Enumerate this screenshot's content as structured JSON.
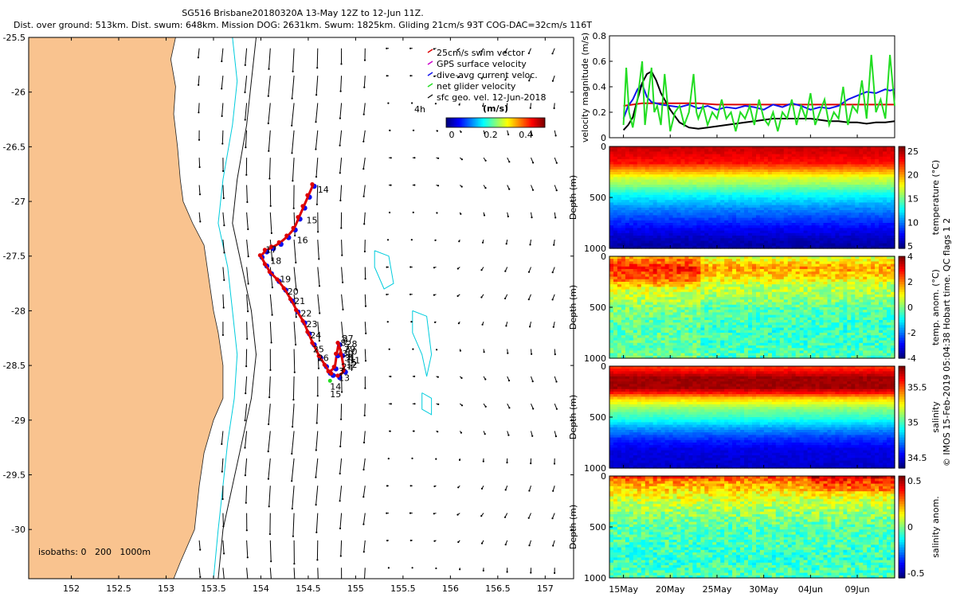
{
  "header": {
    "title": "SG516 Brisbane20180320A 13-May 12Z to 12-Jun 11Z.",
    "stats": "Dist. over ground: 513km. Dist. swum: 648km. Mission DOG: 2631km. Swum: 1825km. Gliding 21cm/s 93T COG-DAC=32cm/s 116T"
  },
  "colors": {
    "land": "#f9c38f",
    "isobath_200": "#00ccdd",
    "track_red": "#dd0000",
    "track_blue": "#1010ee",
    "net_green": "#22dd22"
  },
  "map": {
    "legend": [
      "25cm/s swim vector",
      "GPS surface velocity",
      "dive-avg current veloc.",
      "net glider velocity",
      "sfc geo. vel. 12-Jun-2018"
    ],
    "ref_arrow_label": "4h",
    "colorbar_units": "(m/s)",
    "colorbar_ticks": [
      "0",
      "0.2",
      "0.4"
    ],
    "isobaths_label": "isobaths: 0   200   1000m",
    "x_ticks": [
      "152",
      "152.5",
      "153",
      "153.5",
      "154",
      "154.5",
      "155",
      "155.5",
      "156",
      "156.5",
      "157"
    ],
    "y_ticks": [
      "-25.5",
      "-26",
      "-26.5",
      "-27",
      "-27.5",
      "-28",
      "-28.5",
      "-29",
      "-29.5",
      "-30"
    ],
    "day_labels": [
      "14",
      "15",
      "16",
      "17",
      "18",
      "19",
      "20",
      "21",
      "22",
      "23",
      "24",
      "25",
      "26",
      "27",
      "28",
      "29",
      "30",
      "31",
      "1",
      "2",
      "3",
      "4",
      "5",
      "6",
      "7",
      "8",
      "9",
      "10",
      "11",
      "12",
      "13",
      "14",
      "15"
    ]
  },
  "chart_data": [
    {
      "type": "line",
      "ylabel": "velocity magnitude (m/s)",
      "ylim": [
        0,
        0.8
      ],
      "yticks": [
        "0",
        "0.2",
        "0.4",
        "0.6",
        "0.8"
      ],
      "x_day_range": [
        0,
        29
      ],
      "series": [
        {
          "name": "swim",
          "color": "red",
          "points": [
            [
              0,
              0.25
            ],
            [
              1,
              0.26
            ],
            [
              2,
              0.27
            ],
            [
              3,
              0.27
            ],
            [
              4,
              0.27
            ],
            [
              5,
              0.27
            ],
            [
              8,
              0.27
            ],
            [
              10,
              0.26
            ],
            [
              14,
              0.26
            ],
            [
              18,
              0.26
            ],
            [
              22,
              0.26
            ],
            [
              26,
              0.26
            ],
            [
              29,
              0.26
            ]
          ]
        },
        {
          "name": "depth-average current",
          "color": "blue",
          "points": [
            [
              0,
              0.15
            ],
            [
              0.5,
              0.25
            ],
            [
              1,
              0.3
            ],
            [
              1.5,
              0.38
            ],
            [
              2,
              0.42
            ],
            [
              2.5,
              0.32
            ],
            [
              3,
              0.28
            ],
            [
              4,
              0.26
            ],
            [
              5,
              0.25
            ],
            [
              6,
              0.24
            ],
            [
              7,
              0.26
            ],
            [
              8,
              0.23
            ],
            [
              9,
              0.25
            ],
            [
              10,
              0.22
            ],
            [
              11,
              0.24
            ],
            [
              12,
              0.23
            ],
            [
              13,
              0.25
            ],
            [
              14,
              0.24
            ],
            [
              15,
              0.22
            ],
            [
              16,
              0.26
            ],
            [
              17,
              0.24
            ],
            [
              18,
              0.27
            ],
            [
              19,
              0.25
            ],
            [
              20,
              0.22
            ],
            [
              21,
              0.24
            ],
            [
              22,
              0.23
            ],
            [
              23,
              0.25
            ],
            [
              24,
              0.3
            ],
            [
              25,
              0.33
            ],
            [
              26,
              0.36
            ],
            [
              27,
              0.35
            ],
            [
              28,
              0.38
            ],
            [
              28.5,
              0.37
            ],
            [
              29,
              0.38
            ]
          ]
        },
        {
          "name": "surface geostrophic",
          "color": "black",
          "points": [
            [
              0,
              0.06
            ],
            [
              0.5,
              0.1
            ],
            [
              1,
              0.16
            ],
            [
              1.5,
              0.3
            ],
            [
              2,
              0.43
            ],
            [
              2.5,
              0.5
            ],
            [
              3,
              0.52
            ],
            [
              3.5,
              0.45
            ],
            [
              4,
              0.35
            ],
            [
              5,
              0.22
            ],
            [
              6,
              0.12
            ],
            [
              7,
              0.08
            ],
            [
              8,
              0.07
            ],
            [
              9,
              0.08
            ],
            [
              10,
              0.09
            ],
            [
              11,
              0.1
            ],
            [
              12,
              0.11
            ],
            [
              13,
              0.12
            ],
            [
              14,
              0.13
            ],
            [
              15,
              0.14
            ],
            [
              16,
              0.15
            ],
            [
              17,
              0.15
            ],
            [
              18,
              0.15
            ],
            [
              19,
              0.15
            ],
            [
              20,
              0.15
            ],
            [
              21,
              0.14
            ],
            [
              22,
              0.13
            ],
            [
              23,
              0.13
            ],
            [
              24,
              0.12
            ],
            [
              25,
              0.12
            ],
            [
              26,
              0.11
            ],
            [
              27,
              0.12
            ],
            [
              28,
              0.12
            ],
            [
              29,
              0.13
            ]
          ]
        },
        {
          "name": "net glider velocity",
          "color": "green",
          "points": [
            [
              0,
              0.1
            ],
            [
              0.3,
              0.55
            ],
            [
              0.6,
              0.2
            ],
            [
              1,
              0.08
            ],
            [
              1.5,
              0.3
            ],
            [
              2,
              0.6
            ],
            [
              2.3,
              0.1
            ],
            [
              2.6,
              0.3
            ],
            [
              3,
              0.55
            ],
            [
              3.3,
              0.2
            ],
            [
              3.6,
              0.25
            ],
            [
              4,
              0.1
            ],
            [
              4.4,
              0.5
            ],
            [
              4.8,
              0.2
            ],
            [
              5,
              0.05
            ],
            [
              5.5,
              0.2
            ],
            [
              6,
              0.25
            ],
            [
              6.5,
              0.1
            ],
            [
              7,
              0.2
            ],
            [
              7.5,
              0.5
            ],
            [
              7.8,
              0.2
            ],
            [
              8,
              0.15
            ],
            [
              8.5,
              0.25
            ],
            [
              9,
              0.1
            ],
            [
              9.5,
              0.2
            ],
            [
              10,
              0.15
            ],
            [
              10.5,
              0.3
            ],
            [
              11,
              0.15
            ],
            [
              11.5,
              0.2
            ],
            [
              12,
              0.05
            ],
            [
              12.5,
              0.2
            ],
            [
              13,
              0.15
            ],
            [
              13.5,
              0.25
            ],
            [
              14,
              0.1
            ],
            [
              14.5,
              0.3
            ],
            [
              15,
              0.15
            ],
            [
              15.5,
              0.1
            ],
            [
              16,
              0.2
            ],
            [
              16.5,
              0.05
            ],
            [
              17,
              0.2
            ],
            [
              17.5,
              0.15
            ],
            [
              18,
              0.3
            ],
            [
              18.5,
              0.1
            ],
            [
              19,
              0.25
            ],
            [
              19.5,
              0.15
            ],
            [
              20,
              0.35
            ],
            [
              20.5,
              0.1
            ],
            [
              21,
              0.2
            ],
            [
              21.5,
              0.3
            ],
            [
              22,
              0.1
            ],
            [
              22.5,
              0.2
            ],
            [
              23,
              0.15
            ],
            [
              23.5,
              0.4
            ],
            [
              24,
              0.1
            ],
            [
              24.5,
              0.25
            ],
            [
              25,
              0.2
            ],
            [
              25.5,
              0.45
            ],
            [
              26,
              0.15
            ],
            [
              26.5,
              0.65
            ],
            [
              27,
              0.2
            ],
            [
              27.5,
              0.3
            ],
            [
              28,
              0.15
            ],
            [
              28.5,
              0.65
            ],
            [
              29,
              0.25
            ]
          ]
        }
      ]
    },
    {
      "type": "heatmap",
      "ylabel": "Depth (m)",
      "ylim": [
        0,
        1000
      ],
      "yticks": [
        "0",
        "500",
        "1000"
      ],
      "colorbar_label": "temperature (°C)",
      "colorbar_ticks": [
        "25",
        "20",
        "15",
        "10",
        "5"
      ],
      "colorbar_range": [
        4.5,
        26
      ],
      "depth_profile": [
        [
          0,
          24.5
        ],
        [
          50,
          24
        ],
        [
          100,
          23.5
        ],
        [
          150,
          23
        ],
        [
          200,
          21
        ],
        [
          250,
          19
        ],
        [
          300,
          17
        ],
        [
          350,
          16
        ],
        [
          400,
          14.5
        ],
        [
          450,
          13
        ],
        [
          500,
          12
        ],
        [
          600,
          10
        ],
        [
          700,
          8.5
        ],
        [
          800,
          7
        ],
        [
          900,
          5.8
        ],
        [
          1000,
          5
        ]
      ]
    },
    {
      "type": "heatmap",
      "ylabel": "Depth (m)",
      "ylim": [
        0,
        1000
      ],
      "yticks": [
        "0",
        "500",
        "1000"
      ],
      "colorbar_label": "temp. anom. (°C)",
      "colorbar_ticks": [
        "4",
        "2",
        "0",
        "-2",
        "-4"
      ],
      "colorbar_range": [
        -4,
        4
      ],
      "depth_profile": [
        [
          0,
          1.2
        ],
        [
          100,
          2.2
        ],
        [
          200,
          1.6
        ],
        [
          300,
          0.6
        ],
        [
          400,
          0.3
        ],
        [
          500,
          -0.2
        ],
        [
          700,
          -0.5
        ],
        [
          1000,
          -0.3
        ]
      ]
    },
    {
      "type": "heatmap",
      "ylabel": "Depth (m)",
      "ylim": [
        0,
        1000
      ],
      "yticks": [
        "0",
        "500",
        "1000"
      ],
      "colorbar_label": "salinity",
      "colorbar_ticks": [
        "35.5",
        "35",
        "34.5"
      ],
      "colorbar_range": [
        34.35,
        35.8
      ],
      "depth_profile": [
        [
          0,
          35.55
        ],
        [
          50,
          35.65
        ],
        [
          100,
          35.75
        ],
        [
          200,
          35.75
        ],
        [
          250,
          35.6
        ],
        [
          300,
          35.35
        ],
        [
          400,
          35.1
        ],
        [
          500,
          34.95
        ],
        [
          600,
          34.75
        ],
        [
          700,
          34.6
        ],
        [
          800,
          34.5
        ],
        [
          1000,
          34.45
        ]
      ]
    },
    {
      "type": "heatmap",
      "ylabel": "Depth (m)",
      "ylim": [
        0,
        1000
      ],
      "yticks": [
        "0",
        "500",
        "1000"
      ],
      "colorbar_label": "salinity anom.",
      "colorbar_ticks": [
        "0.5",
        "0",
        "-0.5"
      ],
      "colorbar_range": [
        -0.55,
        0.55
      ],
      "depth_profile": [
        [
          0,
          0.35
        ],
        [
          50,
          0.25
        ],
        [
          150,
          0.15
        ],
        [
          300,
          0.05
        ],
        [
          500,
          -0.05
        ],
        [
          800,
          -0.08
        ],
        [
          1000,
          -0.05
        ]
      ]
    }
  ],
  "date_ticks": [
    "15May",
    "20May",
    "25May",
    "30May",
    "04Jun",
    "09Jun"
  ],
  "side_note": "© IMOS 15-Feb-2019 05:04:38 Hobart time. QC flags 1  2"
}
